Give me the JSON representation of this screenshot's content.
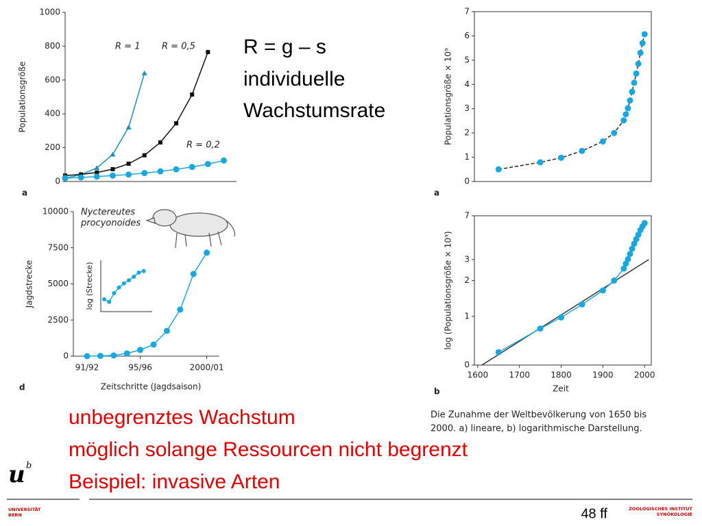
{
  "formula": "R = g – s",
  "definition": [
    "individuelle",
    "Wachstumsrate"
  ],
  "notes": [
    "unbegrenztes Wachstum",
    "möglich solange Ressourcen nicht begrenzt",
    "Beispiel: invasive Arten"
  ],
  "caption": [
    "Die Zunahme der Weltbevölkerung von 1650 bis",
    "2000. a) lineare, b) logarithmische Darstellung."
  ],
  "page_number": "48 ff",
  "logo": {
    "mark": "u",
    "superscript": "b",
    "name": [
      "UNIVERSITÄT",
      "BERN"
    ]
  },
  "institute": [
    "ZOOLOGISCHES INSTITUT",
    "SYNÖKOLOGIE"
  ],
  "chart_data": [
    {
      "type": "line",
      "panel": "a",
      "y_label": "Populationsgröße",
      "annotations": [
        "R = 1",
        "R = 0,5",
        "R = 0,2"
      ],
      "xlim": [
        0,
        10.8
      ],
      "ylim": [
        0,
        1000
      ],
      "yticks": [
        0,
        200,
        400,
        600,
        800,
        1000
      ],
      "series": [
        {
          "color": "#1b8fbf",
          "marker": "triangle",
          "x": [
            0,
            1,
            2,
            3,
            4,
            5
          ],
          "values": [
            20,
            40,
            80,
            160,
            320,
            640
          ]
        },
        {
          "color": "#111111",
          "marker": "square",
          "x": [
            0,
            1,
            2,
            3,
            4,
            5,
            6,
            7,
            8,
            9
          ],
          "values": [
            35,
            42,
            53,
            73,
            105,
            155,
            231,
            344,
            514,
            765
          ]
        },
        {
          "color": "#1aa7e0",
          "marker": "circle",
          "x": [
            0,
            1,
            2,
            3,
            4,
            5,
            6,
            7,
            8,
            9,
            10
          ],
          "values": [
            20,
            24,
            29,
            35,
            41,
            50,
            60,
            72,
            86,
            103,
            124
          ]
        }
      ]
    },
    {
      "type": "line",
      "panel": "a",
      "y_label": "Populationsgröße × 10⁹",
      "xlim": [
        1592,
        2016
      ],
      "ylim": [
        0,
        7
      ],
      "yticks": [
        0,
        1,
        2,
        3,
        4,
        5,
        6,
        7
      ],
      "series": [
        {
          "color": "#1aa7e0",
          "marker": "circle",
          "line_color": "#222222",
          "line_style": "dashed",
          "x": [
            1650,
            1750,
            1800,
            1850,
            1900,
            1927,
            1950,
            1955,
            1960,
            1965,
            1970,
            1975,
            1980,
            1985,
            1990,
            1995,
            2000
          ],
          "values": [
            0.5,
            0.79,
            0.98,
            1.26,
            1.65,
            2.0,
            2.52,
            2.77,
            3.02,
            3.34,
            3.7,
            4.07,
            4.45,
            4.85,
            5.3,
            5.7,
            6.07
          ]
        }
      ]
    },
    {
      "type": "line",
      "panel": "b",
      "x_label": "Zeit",
      "y_label": "log (Populationsgröße × 10⁹)",
      "log_y": true,
      "xlim": [
        1592,
        2016
      ],
      "xticks": [
        1600,
        1700,
        1800,
        1900,
        2000
      ],
      "ylim": [
        0.39,
        7
      ],
      "yticks": [
        {
          "value": 0.39,
          "label": "0"
        },
        1,
        2,
        3,
        7
      ],
      "series": [
        {
          "color": "#333333",
          "marker": "none",
          "x": [
            1610,
            2010
          ],
          "values": [
            0.39,
            3.0
          ]
        },
        {
          "color": "#1aa7e0",
          "marker": "circle",
          "x": [
            1650,
            1750,
            1800,
            1850,
            1900,
            1927,
            1950,
            1955,
            1960,
            1965,
            1970,
            1975,
            1980,
            1985,
            1990,
            1995,
            2000
          ],
          "values": [
            0.5,
            0.79,
            0.98,
            1.26,
            1.65,
            2.0,
            2.52,
            2.77,
            3.02,
            3.34,
            3.7,
            4.07,
            4.45,
            4.85,
            5.3,
            5.7,
            6.07
          ]
        }
      ]
    },
    {
      "type": "line",
      "panel": "d",
      "x_label": "Zeitschritte (Jagdsaison)",
      "y_label": "Jagdstrecke",
      "annotations": [
        "Nyctereutes",
        "procyonoides"
      ],
      "categories": [
        "91/92",
        null,
        null,
        null,
        "95/96",
        null,
        null,
        null,
        null,
        "2000/01"
      ],
      "ylim": [
        0,
        10000
      ],
      "yticks": [
        0,
        2500,
        5000,
        7500,
        10000
      ],
      "series": [
        {
          "color": "#1aa7e0",
          "marker": "circle",
          "values": [
            0,
            20,
            50,
            190,
            430,
            800,
            1750,
            3220,
            5690,
            7160
          ]
        }
      ]
    },
    {
      "type": "line",
      "y_label": "log (Strecke)",
      "ylim": [
        0,
        10
      ],
      "series": [
        {
          "color": "#1aa7e0",
          "marker": "circle",
          "values": [
            2.4,
            1.9,
            3.6,
            4.7,
            5.5,
            6.1,
            6.8,
            7.6,
            7.9
          ]
        }
      ]
    }
  ]
}
